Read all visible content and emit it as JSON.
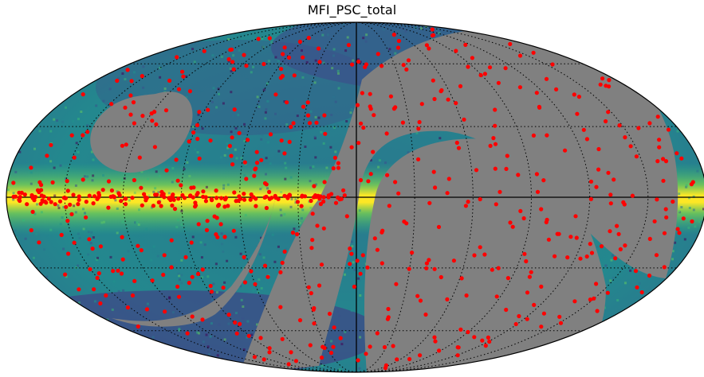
{
  "title": "MFI_PSC_total",
  "projection": "mollweide",
  "colormap": "viridis",
  "colors": {
    "masked_region": "#808080",
    "point_sources": "#ff0000",
    "graticule": "#000000",
    "equator_meridian": "#000000",
    "outline": "#000000",
    "background": "#ffffff"
  },
  "graticule": {
    "latitudes_deg": [
      -60,
      -30,
      30,
      60
    ],
    "longitudes_deg": [
      -150,
      -120,
      -90,
      -60,
      -30,
      30,
      60,
      90,
      120,
      150
    ],
    "style": "dotted"
  },
  "legend": "none"
}
